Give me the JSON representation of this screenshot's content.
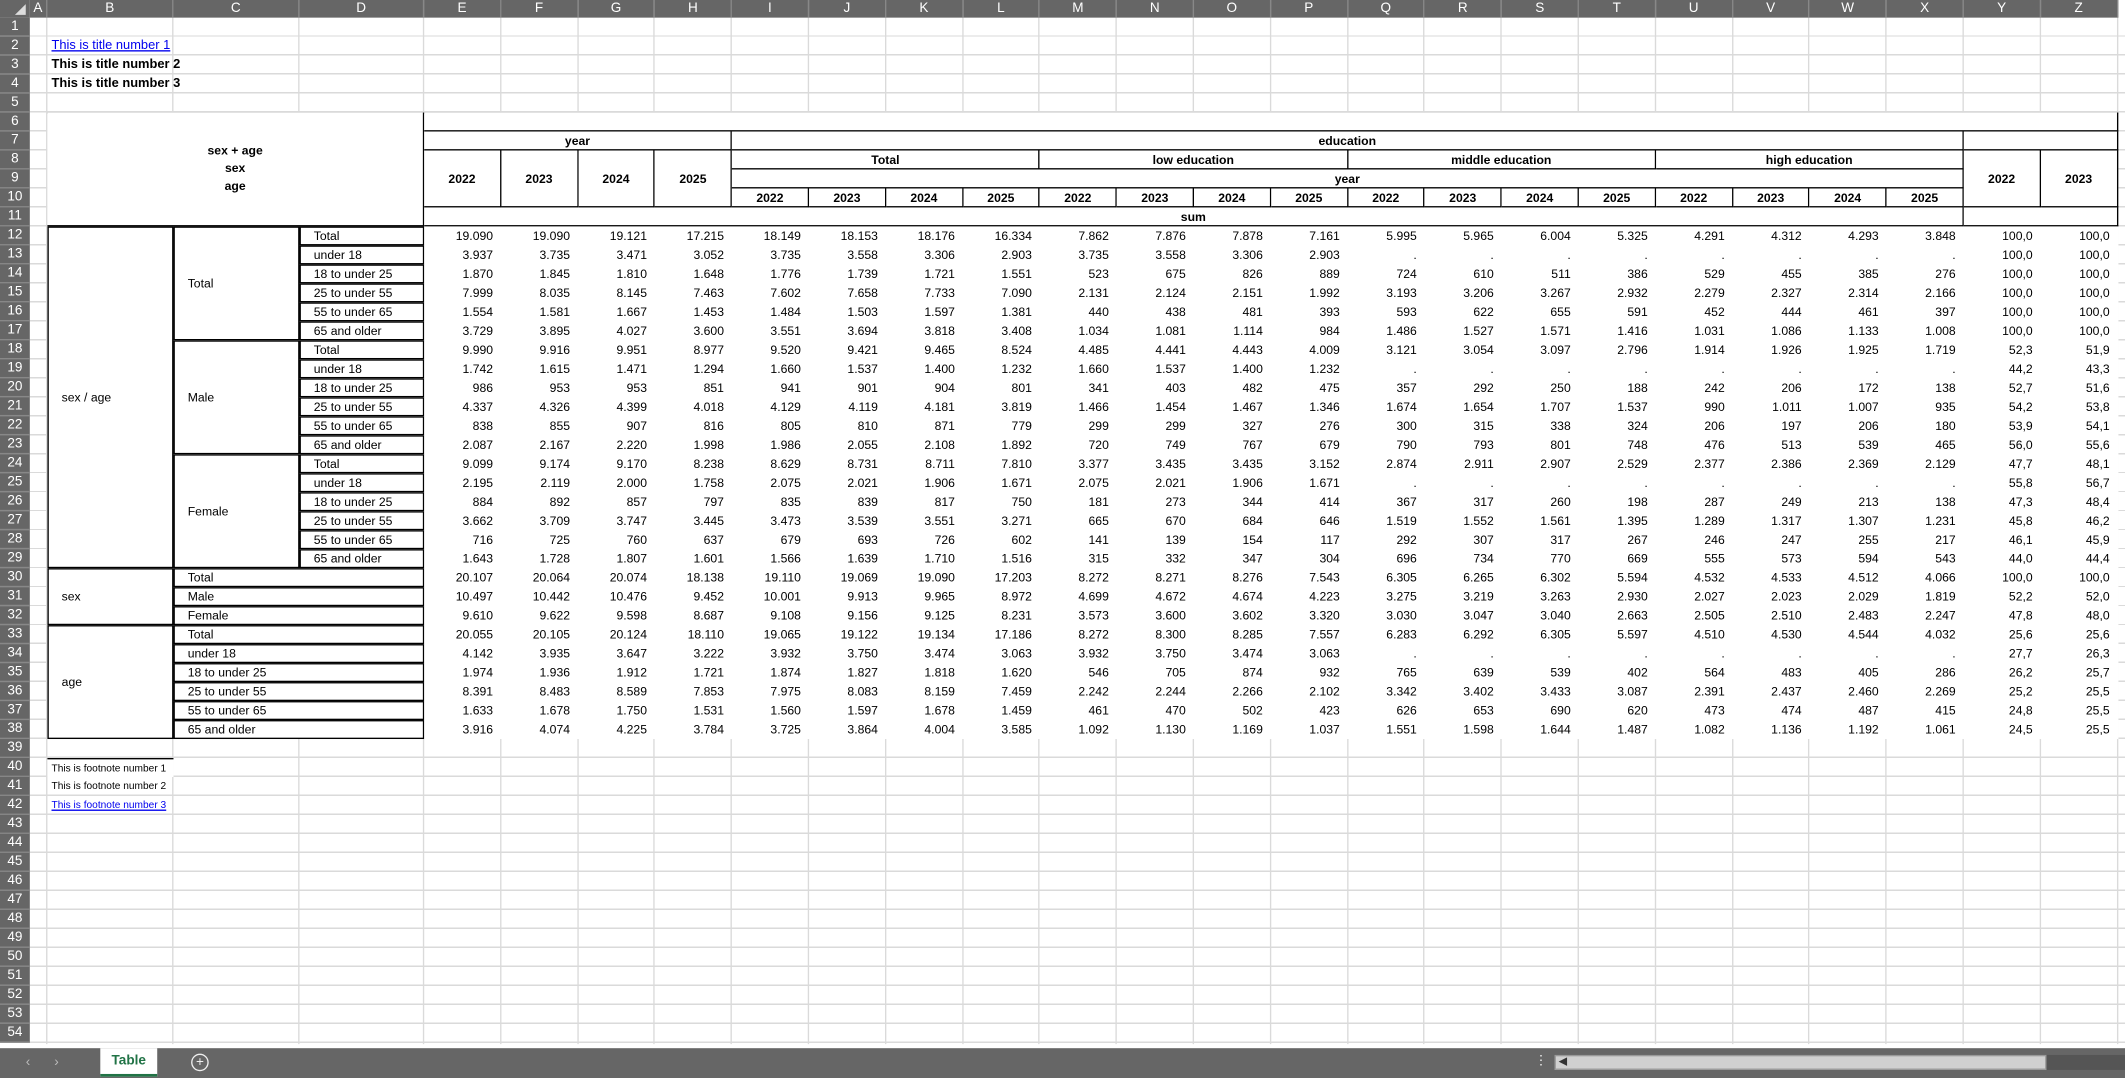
{
  "sheet": {
    "columns": [
      "A",
      "B",
      "C",
      "D",
      "E",
      "F",
      "G",
      "H",
      "I",
      "J",
      "K",
      "L",
      "M",
      "N",
      "O",
      "P",
      "Q",
      "R",
      "S",
      "T",
      "U",
      "V",
      "W",
      "X",
      "Y",
      "Z"
    ],
    "row_numbers": [
      "1",
      "2",
      "3",
      "4",
      "5",
      "6",
      "7",
      "8",
      "9",
      "10",
      "11",
      "12",
      "13",
      "14",
      "15",
      "16",
      "17",
      "18",
      "19",
      "20",
      "21",
      "22",
      "23",
      "24",
      "25",
      "26",
      "27",
      "28",
      "29",
      "30",
      "31",
      "32",
      "33",
      "34",
      "35",
      "36",
      "37",
      "38",
      "39",
      "40",
      "41",
      "42",
      "43",
      "44",
      "45",
      "46",
      "47",
      "48",
      "49",
      "50",
      "51",
      "52",
      "53",
      "54"
    ]
  },
  "titles": [
    "This is title number 1 ",
    "This is title number 2",
    "This is title number 3"
  ],
  "title_link_color": "#0000ee",
  "header": {
    "stub_lines": [
      "sex + age",
      "sex",
      "age"
    ],
    "year_label": "year",
    "education_label": "education",
    "years": [
      "2022",
      "2023",
      "2024",
      "2025"
    ],
    "education_groups": [
      "Total",
      "low education",
      "middle education",
      "high education"
    ],
    "edu_year_label": "year",
    "share_years": [
      "2022",
      "2023"
    ],
    "measure_label": "sum"
  },
  "row_groups": {
    "sex_age": "sex / age",
    "sex": "sex",
    "age": "age",
    "sex_age_subgroups": [
      "Total",
      "Male",
      "Female"
    ]
  },
  "rows": [
    {
      "label": "Total",
      "values": [
        "19.090",
        "19.090",
        "19.121",
        "17.215",
        "18.149",
        "18.153",
        "18.176",
        "16.334",
        "7.862",
        "7.876",
        "7.878",
        "7.161",
        "5.995",
        "5.965",
        "6.004",
        "5.325",
        "4.291",
        "4.312",
        "4.293",
        "3.848",
        "100,0",
        "100,0"
      ]
    },
    {
      "label": "under 18",
      "values": [
        "3.937",
        "3.735",
        "3.471",
        "3.052",
        "3.735",
        "3.558",
        "3.306",
        "2.903",
        "3.735",
        "3.558",
        "3.306",
        "2.903",
        ".",
        ".",
        ".",
        ".",
        ".",
        ".",
        ".",
        ".",
        "100,0",
        "100,0"
      ]
    },
    {
      "label": "18 to under 25",
      "values": [
        "1.870",
        "1.845",
        "1.810",
        "1.648",
        "1.776",
        "1.739",
        "1.721",
        "1.551",
        "523",
        "675",
        "826",
        "889",
        "724",
        "610",
        "511",
        "386",
        "529",
        "455",
        "385",
        "276",
        "100,0",
        "100,0"
      ]
    },
    {
      "label": "25 to under 55",
      "values": [
        "7.999",
        "8.035",
        "8.145",
        "7.463",
        "7.602",
        "7.658",
        "7.733",
        "7.090",
        "2.131",
        "2.124",
        "2.151",
        "1.992",
        "3.193",
        "3.206",
        "3.267",
        "2.932",
        "2.279",
        "2.327",
        "2.314",
        "2.166",
        "100,0",
        "100,0"
      ]
    },
    {
      "label": "55 to under 65",
      "values": [
        "1.554",
        "1.581",
        "1.667",
        "1.453",
        "1.484",
        "1.503",
        "1.597",
        "1.381",
        "440",
        "438",
        "481",
        "393",
        "593",
        "622",
        "655",
        "591",
        "452",
        "444",
        "461",
        "397",
        "100,0",
        "100,0"
      ]
    },
    {
      "label": "65 and older",
      "values": [
        "3.729",
        "3.895",
        "4.027",
        "3.600",
        "3.551",
        "3.694",
        "3.818",
        "3.408",
        "1.034",
        "1.081",
        "1.114",
        "984",
        "1.486",
        "1.527",
        "1.571",
        "1.416",
        "1.031",
        "1.086",
        "1.133",
        "1.008",
        "100,0",
        "100,0"
      ]
    },
    {
      "label": "Total",
      "values": [
        "9.990",
        "9.916",
        "9.951",
        "8.977",
        "9.520",
        "9.421",
        "9.465",
        "8.524",
        "4.485",
        "4.441",
        "4.443",
        "4.009",
        "3.121",
        "3.054",
        "3.097",
        "2.796",
        "1.914",
        "1.926",
        "1.925",
        "1.719",
        "52,3",
        "51,9"
      ]
    },
    {
      "label": "under 18",
      "values": [
        "1.742",
        "1.615",
        "1.471",
        "1.294",
        "1.660",
        "1.537",
        "1.400",
        "1.232",
        "1.660",
        "1.537",
        "1.400",
        "1.232",
        ".",
        ".",
        ".",
        ".",
        ".",
        ".",
        ".",
        ".",
        "44,2",
        "43,3"
      ]
    },
    {
      "label": "18 to under 25",
      "values": [
        "986",
        "953",
        "953",
        "851",
        "941",
        "901",
        "904",
        "801",
        "341",
        "403",
        "482",
        "475",
        "357",
        "292",
        "250",
        "188",
        "242",
        "206",
        "172",
        "138",
        "52,7",
        "51,6"
      ]
    },
    {
      "label": "25 to under 55",
      "values": [
        "4.337",
        "4.326",
        "4.399",
        "4.018",
        "4.129",
        "4.119",
        "4.181",
        "3.819",
        "1.466",
        "1.454",
        "1.467",
        "1.346",
        "1.674",
        "1.654",
        "1.707",
        "1.537",
        "990",
        "1.011",
        "1.007",
        "935",
        "54,2",
        "53,8"
      ]
    },
    {
      "label": "55 to under 65",
      "values": [
        "838",
        "855",
        "907",
        "816",
        "805",
        "810",
        "871",
        "779",
        "299",
        "299",
        "327",
        "276",
        "300",
        "315",
        "338",
        "324",
        "206",
        "197",
        "206",
        "180",
        "53,9",
        "54,1"
      ]
    },
    {
      "label": "65 and older",
      "values": [
        "2.087",
        "2.167",
        "2.220",
        "1.998",
        "1.986",
        "2.055",
        "2.108",
        "1.892",
        "720",
        "749",
        "767",
        "679",
        "790",
        "793",
        "801",
        "748",
        "476",
        "513",
        "539",
        "465",
        "56,0",
        "55,6"
      ]
    },
    {
      "label": "Total",
      "values": [
        "9.099",
        "9.174",
        "9.170",
        "8.238",
        "8.629",
        "8.731",
        "8.711",
        "7.810",
        "3.377",
        "3.435",
        "3.435",
        "3.152",
        "2.874",
        "2.911",
        "2.907",
        "2.529",
        "2.377",
        "2.386",
        "2.369",
        "2.129",
        "47,7",
        "48,1"
      ]
    },
    {
      "label": "under 18",
      "values": [
        "2.195",
        "2.119",
        "2.000",
        "1.758",
        "2.075",
        "2.021",
        "1.906",
        "1.671",
        "2.075",
        "2.021",
        "1.906",
        "1.671",
        ".",
        ".",
        ".",
        ".",
        ".",
        ".",
        ".",
        ".",
        "55,8",
        "56,7"
      ]
    },
    {
      "label": "18 to under 25",
      "values": [
        "884",
        "892",
        "857",
        "797",
        "835",
        "839",
        "817",
        "750",
        "181",
        "273",
        "344",
        "414",
        "367",
        "317",
        "260",
        "198",
        "287",
        "249",
        "213",
        "138",
        "47,3",
        "48,4"
      ]
    },
    {
      "label": "25 to under 55",
      "values": [
        "3.662",
        "3.709",
        "3.747",
        "3.445",
        "3.473",
        "3.539",
        "3.551",
        "3.271",
        "665",
        "670",
        "684",
        "646",
        "1.519",
        "1.552",
        "1.561",
        "1.395",
        "1.289",
        "1.317",
        "1.307",
        "1.231",
        "45,8",
        "46,2"
      ]
    },
    {
      "label": "55 to under 65",
      "values": [
        "716",
        "725",
        "760",
        "637",
        "679",
        "693",
        "726",
        "602",
        "141",
        "139",
        "154",
        "117",
        "292",
        "307",
        "317",
        "267",
        "246",
        "247",
        "255",
        "217",
        "46,1",
        "45,9"
      ]
    },
    {
      "label": "65 and older",
      "values": [
        "1.643",
        "1.728",
        "1.807",
        "1.601",
        "1.566",
        "1.639",
        "1.710",
        "1.516",
        "315",
        "332",
        "347",
        "304",
        "696",
        "734",
        "770",
        "669",
        "555",
        "573",
        "594",
        "543",
        "44,0",
        "44,4"
      ]
    },
    {
      "label": "Total",
      "values": [
        "20.107",
        "20.064",
        "20.074",
        "18.138",
        "19.110",
        "19.069",
        "19.090",
        "17.203",
        "8.272",
        "8.271",
        "8.276",
        "7.543",
        "6.305",
        "6.265",
        "6.302",
        "5.594",
        "4.532",
        "4.533",
        "4.512",
        "4.066",
        "100,0",
        "100,0"
      ]
    },
    {
      "label": "Male",
      "values": [
        "10.497",
        "10.442",
        "10.476",
        "9.452",
        "10.001",
        "9.913",
        "9.965",
        "8.972",
        "4.699",
        "4.672",
        "4.674",
        "4.223",
        "3.275",
        "3.219",
        "3.263",
        "2.930",
        "2.027",
        "2.023",
        "2.029",
        "1.819",
        "52,2",
        "52,0"
      ]
    },
    {
      "label": "Female",
      "values": [
        "9.610",
        "9.622",
        "9.598",
        "8.687",
        "9.108",
        "9.156",
        "9.125",
        "8.231",
        "3.573",
        "3.600",
        "3.602",
        "3.320",
        "3.030",
        "3.047",
        "3.040",
        "2.663",
        "2.505",
        "2.510",
        "2.483",
        "2.247",
        "47,8",
        "48,0"
      ]
    },
    {
      "label": "Total",
      "values": [
        "20.055",
        "20.105",
        "20.124",
        "18.110",
        "19.065",
        "19.122",
        "19.134",
        "17.186",
        "8.272",
        "8.300",
        "8.285",
        "7.557",
        "6.283",
        "6.292",
        "6.305",
        "5.597",
        "4.510",
        "4.530",
        "4.544",
        "4.032",
        "25,6",
        "25,6"
      ]
    },
    {
      "label": "under 18",
      "values": [
        "4.142",
        "3.935",
        "3.647",
        "3.222",
        "3.932",
        "3.750",
        "3.474",
        "3.063",
        "3.932",
        "3.750",
        "3.474",
        "3.063",
        ".",
        ".",
        ".",
        ".",
        ".",
        ".",
        ".",
        ".",
        "27,7",
        "26,3"
      ]
    },
    {
      "label": "18 to under 25",
      "values": [
        "1.974",
        "1.936",
        "1.912",
        "1.721",
        "1.874",
        "1.827",
        "1.818",
        "1.620",
        "546",
        "705",
        "874",
        "932",
        "765",
        "639",
        "539",
        "402",
        "564",
        "483",
        "405",
        "286",
        "26,2",
        "25,7"
      ]
    },
    {
      "label": "25 to under 55",
      "values": [
        "8.391",
        "8.483",
        "8.589",
        "7.853",
        "7.975",
        "8.083",
        "8.159",
        "7.459",
        "2.242",
        "2.244",
        "2.266",
        "2.102",
        "3.342",
        "3.402",
        "3.433",
        "3.087",
        "2.391",
        "2.437",
        "2.460",
        "2.269",
        "25,2",
        "25,5"
      ]
    },
    {
      "label": "55 to under 65",
      "values": [
        "1.633",
        "1.678",
        "1.750",
        "1.531",
        "1.560",
        "1.597",
        "1.678",
        "1.459",
        "461",
        "470",
        "502",
        "423",
        "626",
        "653",
        "690",
        "620",
        "473",
        "474",
        "487",
        "415",
        "24,8",
        "25,5"
      ]
    },
    {
      "label": "65 and older",
      "values": [
        "3.916",
        "4.074",
        "4.225",
        "3.784",
        "3.725",
        "3.864",
        "4.004",
        "3.585",
        "1.092",
        "1.130",
        "1.169",
        "1.037",
        "1.551",
        "1.598",
        "1.644",
        "1.487",
        "1.082",
        "1.136",
        "1.192",
        "1.061",
        "24,5",
        "25,5"
      ]
    }
  ],
  "footnotes": [
    "This is footnote number 1",
    "This is footnote number 2",
    "This is footnote number 3"
  ],
  "sheet_tabs": {
    "active": "Table",
    "add_icon": "plus-circle-icon",
    "active_color": "#217346"
  },
  "chrome_colors": {
    "header_bg": "#666666",
    "gridline": "#dadada"
  }
}
